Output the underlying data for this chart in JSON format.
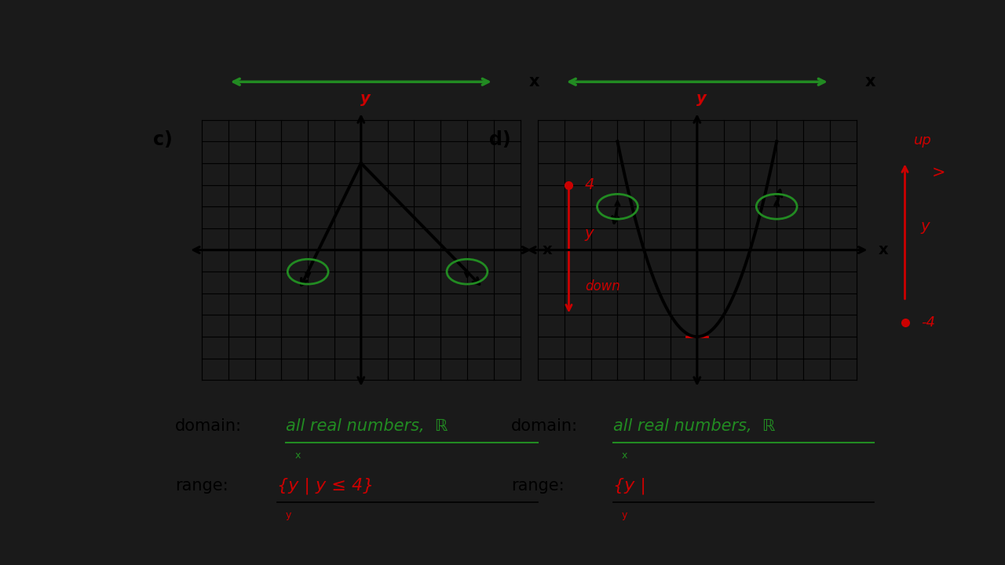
{
  "bg_color": "#ffffff",
  "outer_bg": "#1a1a1a",
  "green_color": "#228B22",
  "red_color": "#cc0000",
  "black_color": "#000000",
  "c_bx": 0.16,
  "c_by": 0.32,
  "c_bw": 0.36,
  "c_bh": 0.48,
  "d_bx": 0.54,
  "d_by": 0.32,
  "d_bw": 0.36,
  "d_bh": 0.48,
  "xlim": [
    -6,
    6
  ],
  "ylim": [
    -6,
    6
  ],
  "domain_answer": "all real numbers,  ℝ",
  "range_c_answer": "{y | y ≤ 4}",
  "range_d_answer": "{y |"
}
